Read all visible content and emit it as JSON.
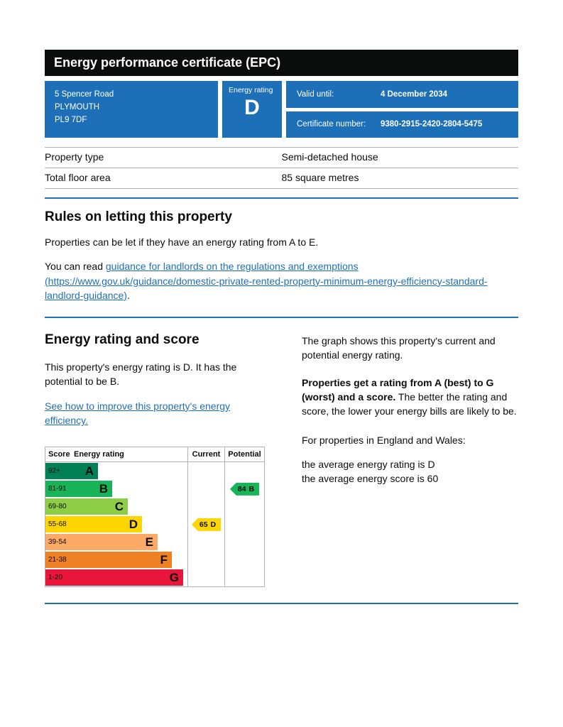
{
  "page": {
    "title": "Energy performance certificate (EPC)"
  },
  "summary": {
    "address": {
      "line1": "5 Spencer Road",
      "line2": "PLYMOUTH",
      "line3": "PL9 7DF"
    },
    "rating_box": {
      "label": "Energy rating",
      "value": "D"
    },
    "valid_until": {
      "label": "Valid until:",
      "value": "4 December 2034"
    },
    "certificate_number": {
      "label": "Certificate number:",
      "value": "9380-2915-2420-2804-5475"
    }
  },
  "property_details": {
    "rows": [
      {
        "label": "Property type",
        "value": "Semi-detached house"
      },
      {
        "label": "Total floor area",
        "value": "85 square metres"
      }
    ]
  },
  "letting_rules": {
    "heading": "Rules on letting this property",
    "intro": "Properties can be let if they have an energy rating from A to E.",
    "guidance_prefix": "You can read ",
    "guidance_link": "guidance for landlords on the regulations and exemptions (https://www.gov.uk/guidance/domestic-private-rented-property-minimum-energy-efficiency-standard-landlord-guidance)",
    "guidance_suffix": "."
  },
  "rating_section": {
    "heading": "Energy rating and score",
    "summary_text": "This property's energy rating is D. It has the potential to be B.",
    "improve_link": "See how to improve this property's energy efficiency.",
    "graph_intro": "The graph shows this property's current and potential energy rating.",
    "explain_bold": "Properties get a rating from A (best) to G (worst) and a score.",
    "explain_rest": " The better the rating and score, the lower your energy bills are likely to be.",
    "region_text": "For properties in England and Wales:",
    "average_rating": "the average energy rating is D",
    "average_score": "the average energy score is 60"
  },
  "chart_data": {
    "type": "epc-band-chart",
    "columns": {
      "score": "Score",
      "rating": "Energy rating",
      "current": "Current",
      "potential": "Potential"
    },
    "bands": [
      {
        "score": "92+",
        "letter": "A",
        "color": "#008054",
        "width_pct": 37
      },
      {
        "score": "81-91",
        "letter": "B",
        "color": "#19b459",
        "width_pct": 47
      },
      {
        "score": "69-80",
        "letter": "C",
        "color": "#8dce46",
        "width_pct": 58
      },
      {
        "score": "55-68",
        "letter": "D",
        "color": "#ffd500",
        "width_pct": 68
      },
      {
        "score": "39-54",
        "letter": "E",
        "color": "#fcaa65",
        "width_pct": 79
      },
      {
        "score": "21-38",
        "letter": "F",
        "color": "#ef8023",
        "width_pct": 89
      },
      {
        "score": "1-20",
        "letter": "G",
        "color": "#e9153b",
        "width_pct": 97
      }
    ],
    "current": {
      "score": "65",
      "letter": "D",
      "color": "#ffd500"
    },
    "potential": {
      "score": "84",
      "letter": "B",
      "color": "#19b459"
    }
  },
  "colors": {
    "header_bg": "#0b0c0c",
    "panel_blue": "#1d70b8",
    "rule_blue": "#1d70b8",
    "link": "#1d70b8",
    "table_border": "#b1b4b6"
  }
}
